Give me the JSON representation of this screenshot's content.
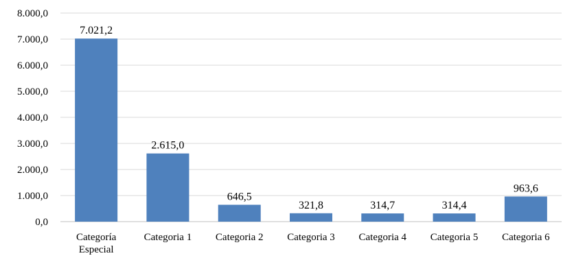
{
  "chart_data": {
    "type": "bar",
    "categories": [
      "Categoría Especial",
      "Categoria 1",
      "Categoria 2",
      "Categoria 3",
      "Categoria 4",
      "Categoria 5",
      "Categoria 6"
    ],
    "category_lines": [
      [
        "Categoría",
        "Especial"
      ],
      [
        "Categoria 1"
      ],
      [
        "Categoria 2"
      ],
      [
        "Categoria 3"
      ],
      [
        "Categoria 4"
      ],
      [
        "Categoria 5"
      ],
      [
        "Categoria 6"
      ]
    ],
    "values": [
      7021.2,
      2615.0,
      646.5,
      321.8,
      314.7,
      314.4,
      963.6
    ],
    "value_labels": [
      "7.021,2",
      "2.615,0",
      "646,5",
      "321,8",
      "314,7",
      "314,4",
      "963,6"
    ],
    "yticks": [
      0,
      1000,
      2000,
      3000,
      4000,
      5000,
      6000,
      7000,
      8000
    ],
    "ytick_labels": [
      "0,0",
      "1.000,0",
      "2.000,0",
      "3.000,0",
      "4.000,0",
      "5.000,0",
      "6.000,0",
      "7.000,0",
      "8.000,0"
    ],
    "ylim": [
      0,
      8000
    ],
    "title": "",
    "xlabel": "",
    "ylabel": "",
    "grid": true,
    "legend": "none",
    "bar_color": "#4f81bd",
    "grid_color": "#d9d9d9"
  }
}
